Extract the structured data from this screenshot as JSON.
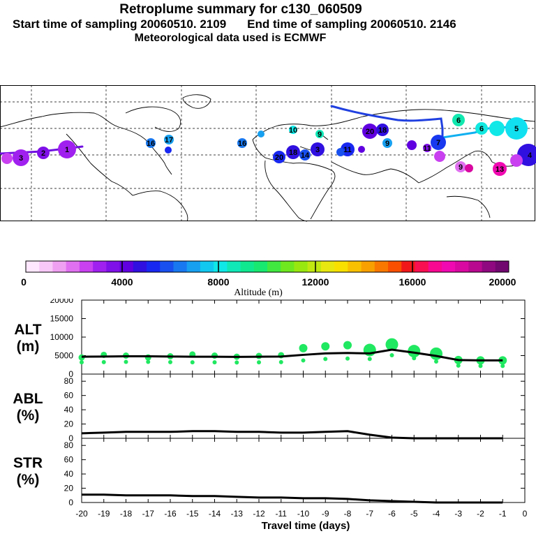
{
  "header": {
    "title": "Retroplume summary for c130_060509",
    "start_label": "Start time of sampling 20060510.  2109",
    "end_label": "End time of sampling 20060510.  2146",
    "met_label": "Meteorological data used is ECMWF"
  },
  "colorbar": {
    "ticks": [
      "0",
      "4000",
      "8000",
      "12000",
      "16000",
      "20000"
    ],
    "label": "Altitude (m)",
    "colors": [
      "#ffe8ff",
      "#f8c8f8",
      "#f0a0f0",
      "#e070f0",
      "#c840f0",
      "#a020f0",
      "#8010e8",
      "#6000e0",
      "#3010e0",
      "#1828f0",
      "#1850f0",
      "#1878f0",
      "#18a0f0",
      "#10c8f0",
      "#10e8e8",
      "#10e8b8",
      "#10e890",
      "#18e870",
      "#40e840",
      "#70e820",
      "#98e810",
      "#c0e810",
      "#e8e810",
      "#f8e000",
      "#f8c000",
      "#f8a000",
      "#f87800",
      "#f85000",
      "#f01818",
      "#f81050",
      "#f80890",
      "#f008b0",
      "#d808a0",
      "#b80890",
      "#900880",
      "#700870"
    ]
  },
  "map": {
    "plume_labels": [
      "1",
      "2",
      "3",
      "4",
      "5",
      "6",
      "7",
      "8",
      "9",
      "10",
      "11",
      "12",
      "13",
      "14",
      "15",
      "16",
      "17",
      "18",
      "19",
      "20"
    ]
  },
  "chart_data": [
    {
      "type": "line",
      "panel": "ALT",
      "ylabel": "ALT\n(m)",
      "ylim": [
        0,
        20000
      ],
      "yticks": [
        "20000",
        "15000",
        "10000",
        "5000",
        "0"
      ],
      "x": [
        -20,
        -19,
        -18,
        -17,
        -16,
        -15,
        -14,
        -13,
        -12,
        -11,
        -10,
        -9,
        -8,
        -7,
        -6,
        -5,
        -4,
        -3,
        -2,
        -1
      ],
      "series": [
        {
          "name": "mean altitude",
          "values": [
            4700,
            4750,
            4800,
            4800,
            4750,
            4700,
            4700,
            4650,
            4700,
            4750,
            5200,
            5600,
            5700,
            5600,
            6600,
            5800,
            4900,
            3800,
            3700,
            3700
          ]
        },
        {
          "name": "cluster altitude",
          "values": [
            4500,
            5200,
            5000,
            4500,
            4800,
            5300,
            5000,
            4700,
            4900,
            5100,
            7000,
            7500,
            7800,
            6500,
            8000,
            6200,
            5500,
            3800,
            3700,
            3700
          ]
        }
      ]
    },
    {
      "type": "line",
      "panel": "ABL",
      "ylabel": "ABL\n(%)",
      "ylim": [
        0,
        90
      ],
      "yticks": [
        "80",
        "60",
        "40",
        "20",
        "0"
      ],
      "x": [
        -20,
        -19,
        -18,
        -17,
        -16,
        -15,
        -14,
        -13,
        -12,
        -11,
        -10,
        -9,
        -8,
        -7,
        -6,
        -5,
        -4,
        -3,
        -2,
        -1
      ],
      "series": [
        {
          "name": "ABL fraction",
          "values": [
            7,
            8,
            9,
            9,
            9,
            10,
            10,
            9,
            9,
            8,
            8,
            9,
            10,
            5,
            1,
            0,
            0,
            0,
            0,
            0
          ]
        }
      ]
    },
    {
      "type": "line",
      "panel": "STR",
      "ylabel": "STR\n(%)",
      "ylim": [
        0,
        90
      ],
      "yticks": [
        "80",
        "60",
        "40",
        "20",
        "0"
      ],
      "x": [
        -20,
        -19,
        -18,
        -17,
        -16,
        -15,
        -14,
        -13,
        -12,
        -11,
        -10,
        -9,
        -8,
        -7,
        -6,
        -5,
        -4,
        -3,
        -2,
        -1
      ],
      "xlabel": "Travel time (days)",
      "xticks": [
        "-20",
        "-19",
        "-18",
        "-17",
        "-16",
        "-15",
        "-14",
        "-13",
        "-12",
        "-11",
        "-10",
        "-9",
        "-8",
        "-7",
        "-6",
        "-5",
        "-4",
        "-3",
        "-2",
        "-1",
        "0"
      ],
      "series": [
        {
          "name": "stratospheric fraction",
          "values": [
            11,
            11,
            10,
            10,
            10,
            9,
            9,
            8,
            7,
            7,
            6,
            6,
            5,
            3,
            2,
            1,
            0,
            0,
            0,
            0
          ]
        }
      ]
    }
  ]
}
